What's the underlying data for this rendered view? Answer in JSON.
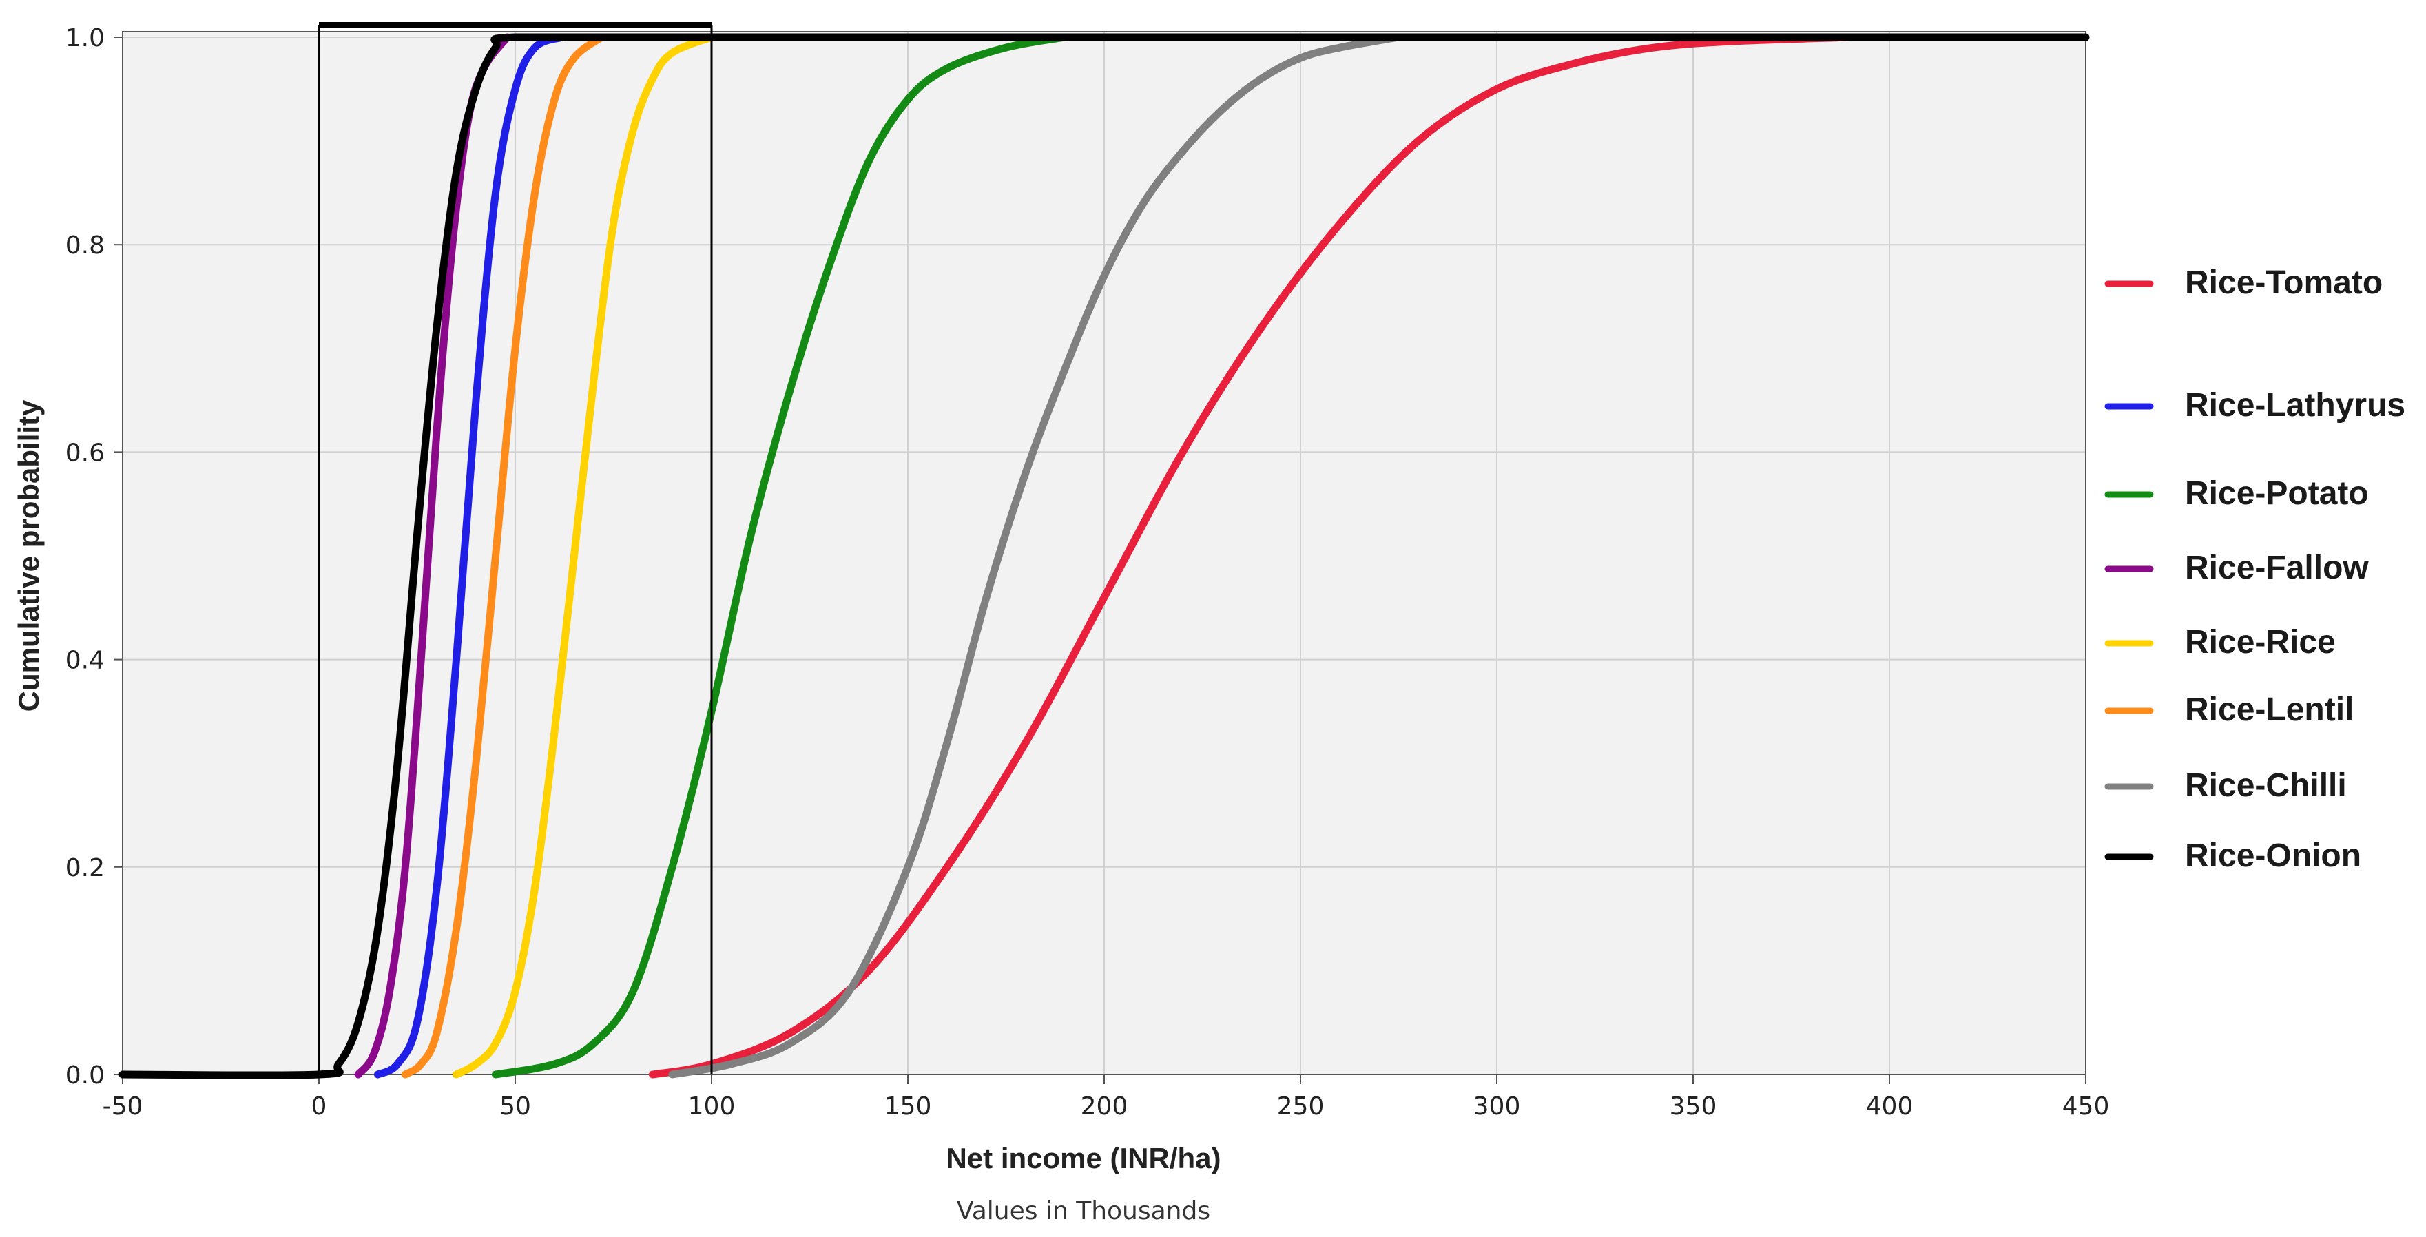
{
  "chart_data": {
    "type": "line",
    "xlabel": "Net income (INR/ha)",
    "x_note": "Values in Thousands",
    "ylabel": "Cumulative probability",
    "xlim": [
      -50,
      450
    ],
    "ylim": [
      0,
      1
    ],
    "x_ticks": [
      "-50",
      "0",
      "50",
      "100",
      "150",
      "200",
      "250",
      "300",
      "350",
      "400",
      "450"
    ],
    "y_ticks": [
      "0.0",
      "0.2",
      "0.4",
      "0.6",
      "0.8",
      "1.0"
    ],
    "grid": true,
    "legend_position": "right",
    "highlight_box": {
      "x_range": [
        0,
        100
      ],
      "y_range": [
        0,
        1
      ]
    },
    "series": [
      {
        "name": "Rice-Tomato",
        "color": "#E8203C",
        "points": [
          [
            85,
            0
          ],
          [
            100,
            0.01
          ],
          [
            120,
            0.04
          ],
          [
            140,
            0.1
          ],
          [
            160,
            0.2
          ],
          [
            180,
            0.32
          ],
          [
            200,
            0.46
          ],
          [
            220,
            0.6
          ],
          [
            240,
            0.72
          ],
          [
            260,
            0.82
          ],
          [
            280,
            0.9
          ],
          [
            300,
            0.95
          ],
          [
            320,
            0.975
          ],
          [
            340,
            0.99
          ],
          [
            360,
            0.996
          ],
          [
            390,
            1
          ]
        ]
      },
      {
        "name": "Rice-Lathyrus",
        "color": "#1F1FE8",
        "points": [
          [
            15,
            0
          ],
          [
            20,
            0.01
          ],
          [
            25,
            0.05
          ],
          [
            30,
            0.18
          ],
          [
            35,
            0.4
          ],
          [
            40,
            0.65
          ],
          [
            45,
            0.85
          ],
          [
            50,
            0.95
          ],
          [
            55,
            0.99
          ],
          [
            62,
            1
          ]
        ]
      },
      {
        "name": "Rice-Potato",
        "color": "#138A13",
        "points": [
          [
            45,
            0
          ],
          [
            60,
            0.01
          ],
          [
            70,
            0.03
          ],
          [
            80,
            0.08
          ],
          [
            90,
            0.2
          ],
          [
            100,
            0.35
          ],
          [
            110,
            0.52
          ],
          [
            120,
            0.66
          ],
          [
            130,
            0.78
          ],
          [
            140,
            0.88
          ],
          [
            150,
            0.94
          ],
          [
            160,
            0.97
          ],
          [
            175,
            0.99
          ],
          [
            190,
            1
          ]
        ]
      },
      {
        "name": "Rice-Fallow",
        "color": "#8B0A8B",
        "points": [
          [
            10,
            0
          ],
          [
            14,
            0.02
          ],
          [
            18,
            0.08
          ],
          [
            22,
            0.2
          ],
          [
            26,
            0.4
          ],
          [
            30,
            0.62
          ],
          [
            34,
            0.8
          ],
          [
            38,
            0.92
          ],
          [
            42,
            0.97
          ],
          [
            48,
            1
          ]
        ]
      },
      {
        "name": "Rice-Rice",
        "color": "#FFD200",
        "points": [
          [
            35,
            0
          ],
          [
            40,
            0.01
          ],
          [
            45,
            0.03
          ],
          [
            50,
            0.08
          ],
          [
            55,
            0.18
          ],
          [
            60,
            0.33
          ],
          [
            65,
            0.5
          ],
          [
            70,
            0.67
          ],
          [
            75,
            0.82
          ],
          [
            80,
            0.91
          ],
          [
            85,
            0.96
          ],
          [
            90,
            0.985
          ],
          [
            100,
            1
          ]
        ]
      },
      {
        "name": "Rice-Lentil",
        "color": "#FF8C1A",
        "points": [
          [
            22,
            0
          ],
          [
            26,
            0.01
          ],
          [
            30,
            0.04
          ],
          [
            35,
            0.14
          ],
          [
            40,
            0.3
          ],
          [
            45,
            0.5
          ],
          [
            50,
            0.7
          ],
          [
            55,
            0.85
          ],
          [
            60,
            0.94
          ],
          [
            65,
            0.98
          ],
          [
            72,
            1
          ]
        ]
      },
      {
        "name": "Rice-Chilli",
        "color": "#808080",
        "points": [
          [
            90,
            0
          ],
          [
            105,
            0.01
          ],
          [
            120,
            0.03
          ],
          [
            135,
            0.08
          ],
          [
            150,
            0.2
          ],
          [
            160,
            0.32
          ],
          [
            170,
            0.46
          ],
          [
            180,
            0.58
          ],
          [
            190,
            0.68
          ],
          [
            200,
            0.77
          ],
          [
            210,
            0.84
          ],
          [
            220,
            0.89
          ],
          [
            230,
            0.93
          ],
          [
            240,
            0.96
          ],
          [
            250,
            0.98
          ],
          [
            260,
            0.99
          ],
          [
            275,
            1
          ]
        ]
      },
      {
        "name": "Rice-Onion",
        "color": "#000000",
        "points": [
          [
            -50,
            0
          ],
          [
            0,
            0
          ],
          [
            5,
            0.01
          ],
          [
            10,
            0.05
          ],
          [
            15,
            0.14
          ],
          [
            20,
            0.3
          ],
          [
            25,
            0.52
          ],
          [
            30,
            0.72
          ],
          [
            35,
            0.87
          ],
          [
            40,
            0.95
          ],
          [
            45,
            0.99
          ],
          [
            50,
            1
          ],
          [
            100,
            1
          ],
          [
            450,
            1
          ]
        ]
      }
    ],
    "legend_order": [
      "Rice-Tomato",
      "Rice-Lathyrus",
      "Rice-Potato",
      "Rice-Fallow",
      "Rice-Rice",
      "Rice-Lentil",
      "Rice-Chilli",
      "Rice-Onion"
    ]
  },
  "colors": {
    "plot_background": "#F2F2F2",
    "grid": "#D0D0D0",
    "axis": "#555555"
  }
}
